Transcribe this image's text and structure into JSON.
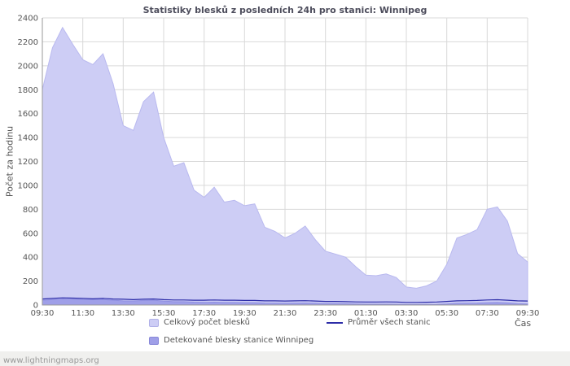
{
  "page": {
    "watermark": "www.lightningmaps.org"
  },
  "chart_data": {
    "type": "area",
    "title": "Statistiky blesků z posledních 24h pro stanici: Winnipeg",
    "ylabel": "Počet za hodinu",
    "xlabel": "Čas",
    "ylim": [
      0,
      2400
    ],
    "ytick_step": 200,
    "x_start": "09:30",
    "x_interval_minutes": 30,
    "x_tick_labels": [
      "09:30",
      "11:30",
      "13:30",
      "15:30",
      "17:30",
      "19:30",
      "21:30",
      "23:30",
      "01:30",
      "03:30",
      "05:30",
      "07:30",
      "09:30"
    ],
    "grid": true,
    "legend_position": "bottom",
    "colors": {
      "grid": "#d9d9d9",
      "axis": "#999999",
      "tick_text": "#555555",
      "total_fill": "#cdcdf5",
      "total_stroke": "#b9b9ef",
      "detected_fill": "#9f9fe8",
      "detected_stroke": "#8f8fe0",
      "average_line": "#2d2da8"
    },
    "legend": [
      {
        "label": "Celkový počet blesků",
        "type": "area",
        "color": "#cdcdf5",
        "border": "#b0b0e8"
      },
      {
        "label": "Průměr všech stanic",
        "type": "line",
        "color": "#2d2da8",
        "border": "#2d2da8"
      },
      {
        "label": "Detekované blesky stanice Winnipeg",
        "type": "area",
        "color": "#9f9fe8",
        "border": "#8888d8"
      }
    ],
    "series": [
      {
        "name": "Celkový počet blesků",
        "type": "area",
        "color": "#cdcdf5",
        "stroke": "#b9b9ef",
        "values": [
          1800,
          2150,
          2320,
          2180,
          2050,
          2010,
          2100,
          1850,
          1500,
          1460,
          1700,
          1780,
          1400,
          1160,
          1190,
          960,
          900,
          985,
          860,
          875,
          830,
          845,
          650,
          615,
          560,
          600,
          660,
          545,
          450,
          425,
          400,
          320,
          250,
          245,
          260,
          230,
          150,
          140,
          160,
          200,
          340,
          560,
          590,
          630,
          800,
          820,
          700,
          430,
          360
        ]
      },
      {
        "name": "Detekované blesky stanice Winnipeg",
        "type": "area",
        "color": "#9f9fe8",
        "stroke": "#8f8fe0",
        "values": [
          40,
          45,
          50,
          48,
          45,
          44,
          46,
          40,
          35,
          34,
          38,
          40,
          33,
          28,
          28,
          24,
          22,
          24,
          21,
          21,
          20,
          20,
          16,
          15,
          14,
          15,
          16,
          14,
          11,
          11,
          10,
          8,
          7,
          7,
          7,
          6,
          4,
          4,
          4,
          5,
          8,
          14,
          15,
          16,
          20,
          21,
          18,
          11,
          9
        ]
      },
      {
        "name": "Průměr všech stanic",
        "type": "line",
        "color": "#2d2da8",
        "values": [
          50,
          55,
          60,
          58,
          55,
          52,
          55,
          50,
          48,
          45,
          48,
          50,
          45,
          42,
          42,
          40,
          40,
          42,
          40,
          40,
          38,
          38,
          35,
          35,
          33,
          35,
          36,
          33,
          30,
          30,
          28,
          26,
          25,
          25,
          26,
          25,
          22,
          22,
          23,
          25,
          30,
          35,
          36,
          38,
          42,
          44,
          40,
          35,
          33
        ]
      }
    ]
  }
}
